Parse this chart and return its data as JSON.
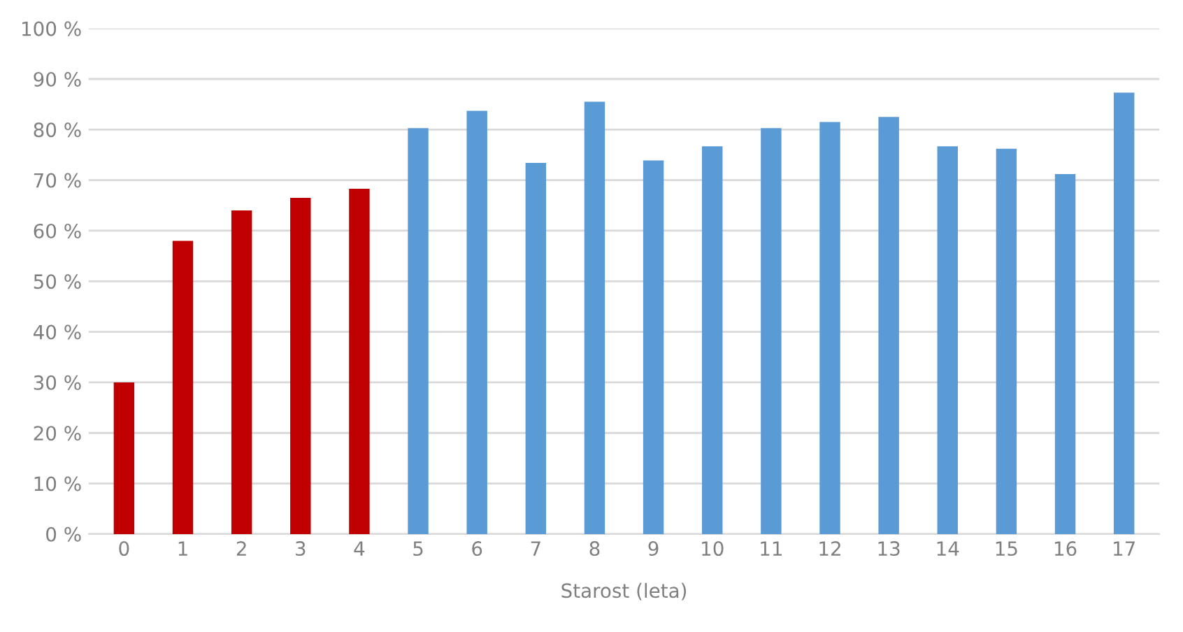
{
  "chart_data": {
    "type": "bar",
    "xlabel": "Starost (leta)",
    "categories": [
      "0",
      "1",
      "2",
      "3",
      "4",
      "5",
      "6",
      "7",
      "8",
      "9",
      "10",
      "11",
      "12",
      "13",
      "14",
      "15",
      "16",
      "17"
    ],
    "values": [
      30,
      58,
      64,
      66.5,
      68.3,
      80.3,
      83.7,
      73.4,
      85.5,
      73.9,
      76.7,
      80.3,
      81.5,
      82.5,
      76.7,
      76.2,
      71.2,
      87.3
    ],
    "colors": [
      "#c00000",
      "#c00000",
      "#c00000",
      "#c00000",
      "#c00000",
      "#5b9bd5",
      "#5b9bd5",
      "#5b9bd5",
      "#5b9bd5",
      "#5b9bd5",
      "#5b9bd5",
      "#5b9bd5",
      "#5b9bd5",
      "#5b9bd5",
      "#5b9bd5",
      "#5b9bd5",
      "#5b9bd5",
      "#5b9bd5"
    ],
    "ylim": [
      0,
      100
    ],
    "yticks": [
      {
        "value": 0,
        "label": "0 %"
      },
      {
        "value": 10,
        "label": "10 %"
      },
      {
        "value": 20,
        "label": "20 %"
      },
      {
        "value": 30,
        "label": "30 %"
      },
      {
        "value": 40,
        "label": "40 %"
      },
      {
        "value": 50,
        "label": "50 %"
      },
      {
        "value": 60,
        "label": "60 %"
      },
      {
        "value": 70,
        "label": "70 %"
      },
      {
        "value": 80,
        "label": "80 %"
      },
      {
        "value": 90,
        "label": "90 %"
      },
      {
        "value": 100,
        "label": "100 %"
      }
    ],
    "grid": "y"
  }
}
